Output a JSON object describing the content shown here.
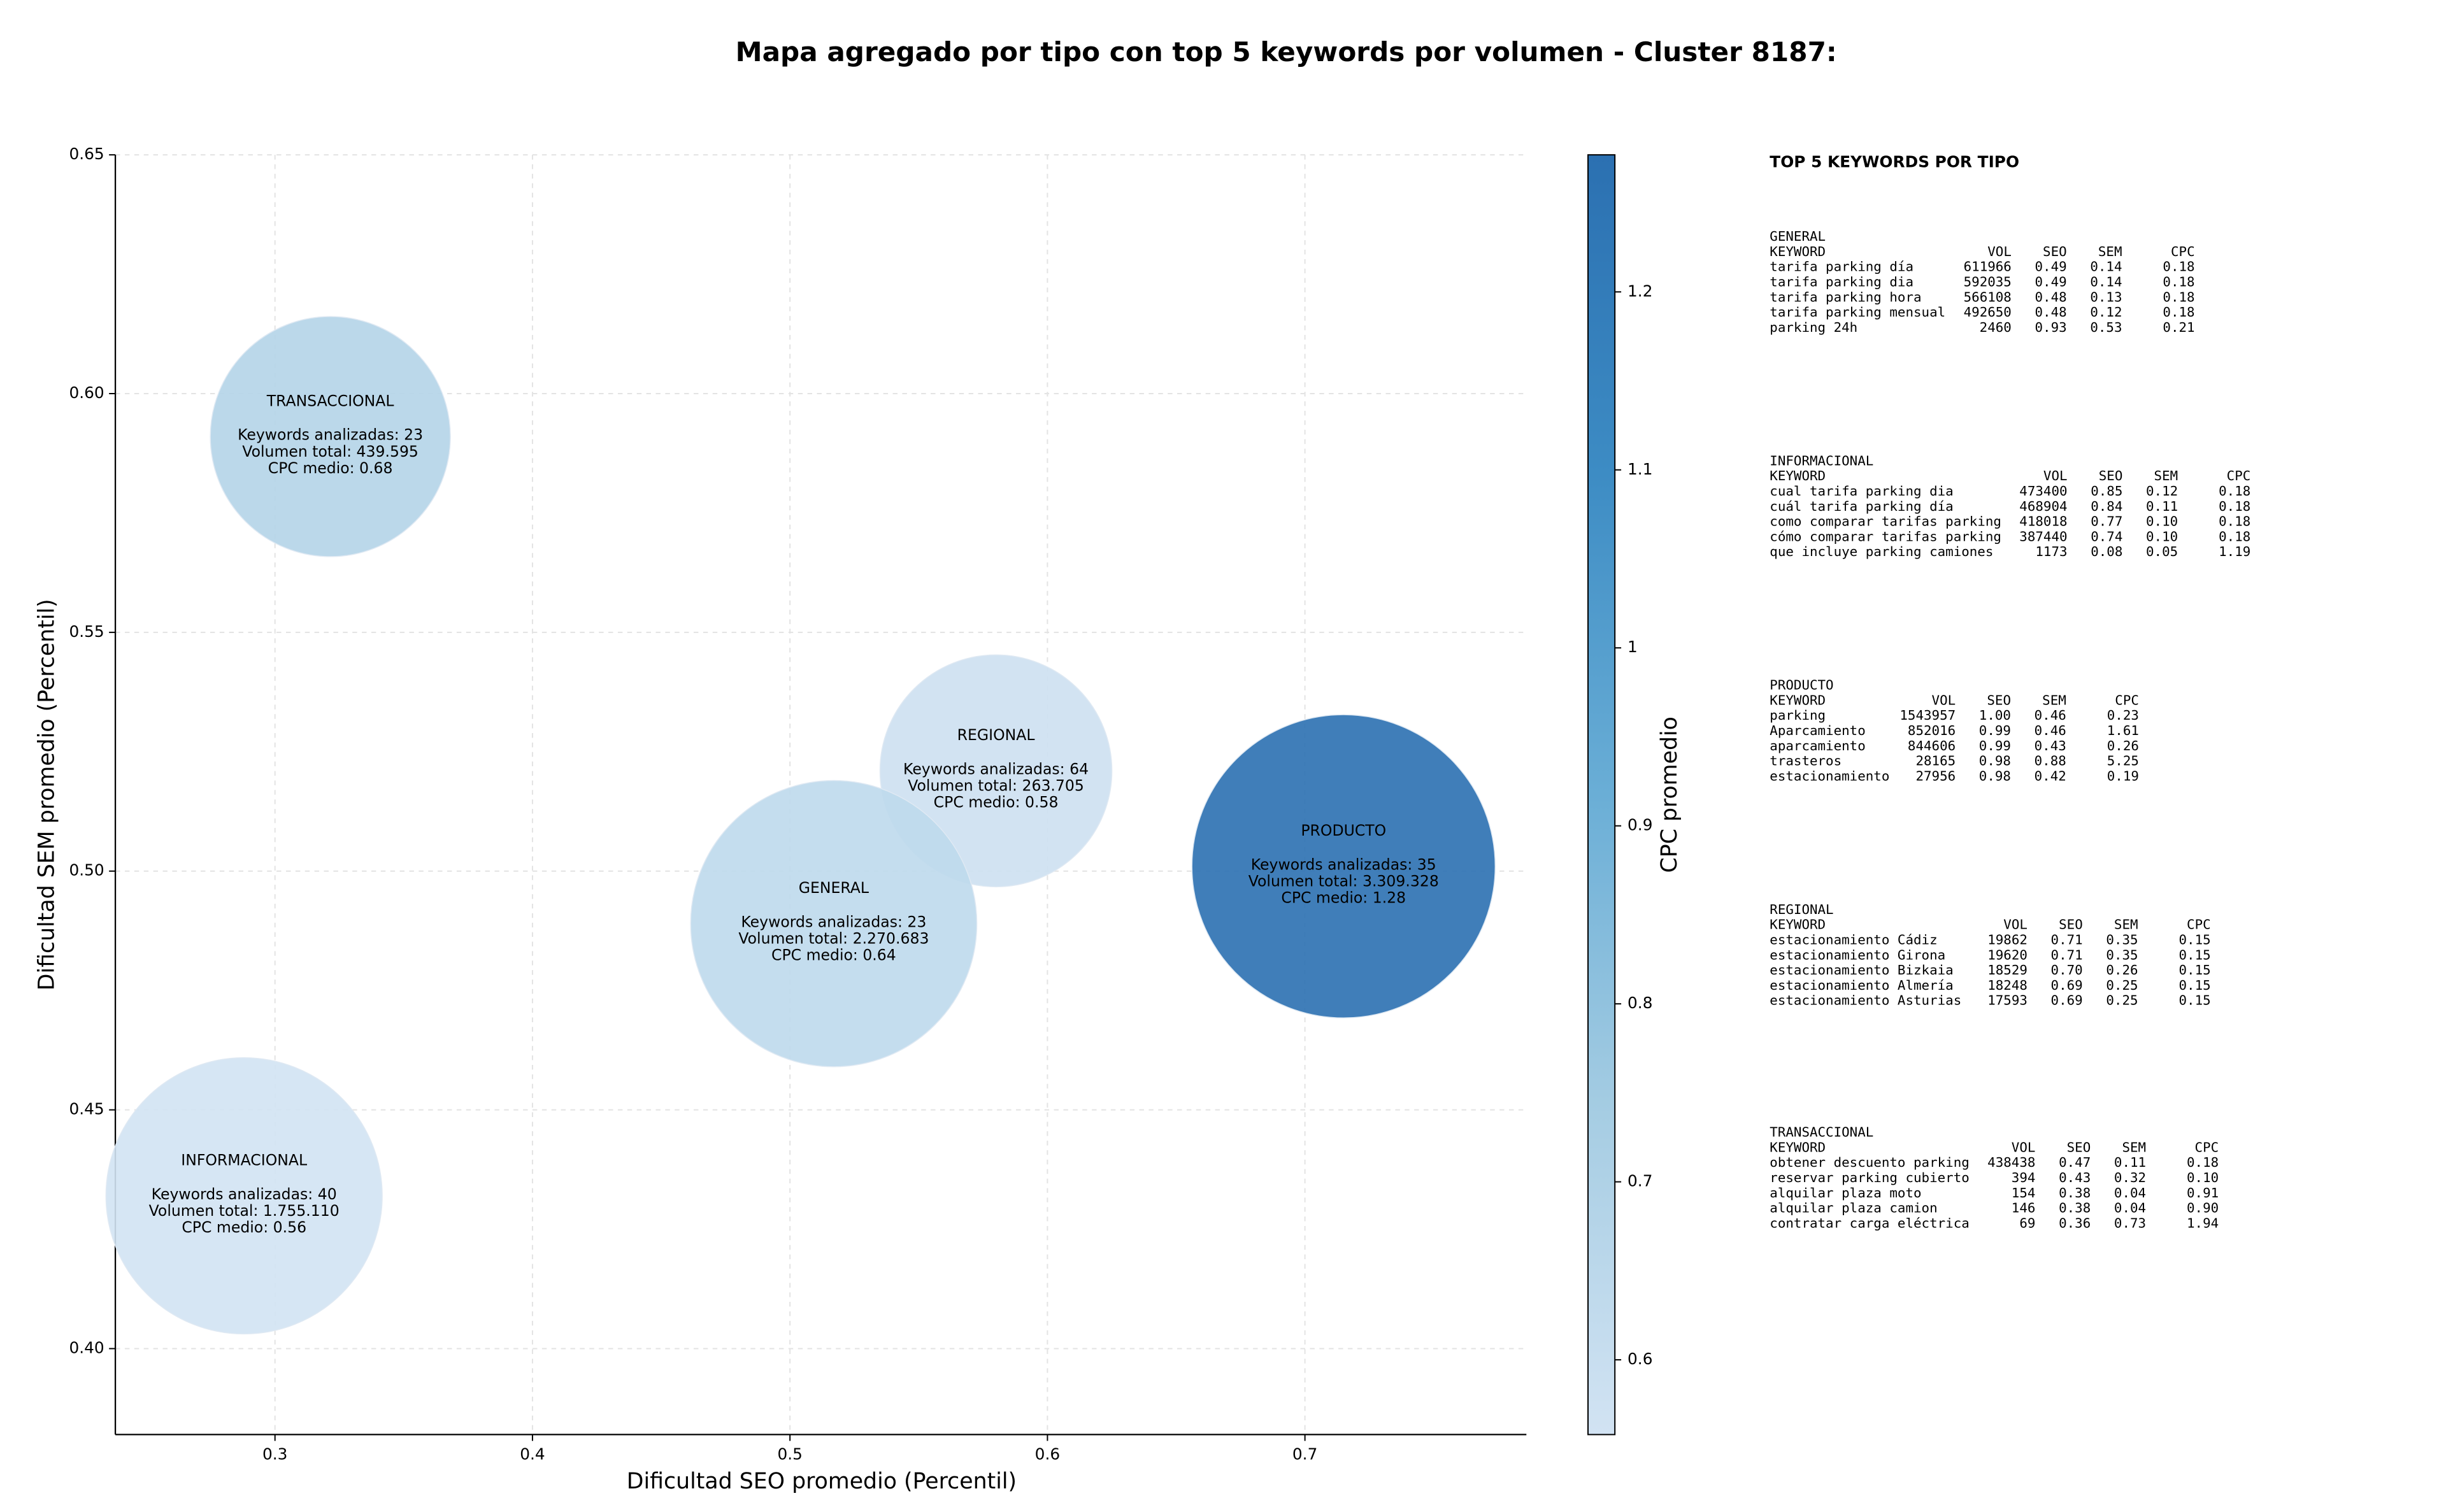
{
  "chart_data": {
    "type": "bubble",
    "title": "Mapa agregado por tipo con top 5 keywords por volumen - Cluster 8187:",
    "x_label": "Dificultad SEO promedio (Percentil)",
    "y_label": "Dificultad SEM promedio (Percentil)",
    "colorbar_label": "CPC promedio",
    "xlim": [
      0.238,
      0.786
    ],
    "xticks": [
      {
        "value": 0.3,
        "label": "0.3"
      },
      {
        "value": 0.4,
        "label": "0.4"
      },
      {
        "value": 0.5,
        "label": "0.5"
      },
      {
        "value": 0.6,
        "label": "0.6"
      },
      {
        "value": 0.7,
        "label": "0.7"
      }
    ],
    "ylim": [
      0.382,
      0.65
    ],
    "yticks": [
      {
        "value": 0.4,
        "label": "0.40"
      },
      {
        "value": 0.45,
        "label": "0.45"
      },
      {
        "value": 0.5,
        "label": "0.50"
      },
      {
        "value": 0.55,
        "label": "0.55"
      },
      {
        "value": 0.6,
        "label": "0.60"
      },
      {
        "value": 0.65,
        "label": "0.65"
      }
    ],
    "clim": [
      0.558,
      1.277
    ],
    "cticks": [
      0.6,
      0.7,
      0.8,
      0.9,
      1.0,
      1.1,
      1.2
    ],
    "cmap": [
      "#d2e3f3",
      "#a6cde3",
      "#6aaed6",
      "#3d8cc4",
      "#2b70b1"
    ],
    "grid": true,
    "points": [
      {
        "label": "TRANSACCIONAL",
        "x": 0.3215,
        "y": 0.591,
        "volume": 439595,
        "cpc": 0.68,
        "lines": [
          "Keywords analizadas: 23",
          "Volumen total: 439.595",
          "CPC medio: 0.68"
        ]
      },
      {
        "label": "REGIONAL",
        "x": 0.58,
        "y": 0.521,
        "volume": 263705,
        "cpc": 0.58,
        "lines": [
          "Keywords analizadas: 64",
          "Volumen total: 263.705",
          "CPC medio: 0.58"
        ]
      },
      {
        "label": "GENERAL",
        "x": 0.517,
        "y": 0.489,
        "volume": 2270683,
        "cpc": 0.64,
        "lines": [
          "Keywords analizadas: 23",
          "Volumen total: 2.270.683",
          "CPC medio: 0.64"
        ]
      },
      {
        "label": "PRODUCTO",
        "x": 0.715,
        "y": 0.501,
        "volume": 3309328,
        "cpc": 1.28,
        "lines": [
          "Keywords analizadas: 35",
          "Volumen total: 3.309.328",
          "CPC medio: 1.28"
        ]
      },
      {
        "label": "INFORMACIONAL",
        "x": 0.288,
        "y": 0.432,
        "volume": 1755110,
        "cpc": 0.56,
        "lines": [
          "Keywords analizadas: 40",
          "Volumen total: 1.755.110",
          "CPC medio: 0.56"
        ]
      }
    ]
  },
  "side_table": {
    "title": "TOP 5 KEYWORDS POR TIPO",
    "sections": [
      {
        "name": "GENERAL",
        "header": [
          "KEYWORD",
          "VOL",
          "SEO",
          "SEM",
          "CPC"
        ],
        "rows": [
          [
            "tarifa parking día",
            "611966",
            "0.49",
            "0.14",
            "0.18"
          ],
          [
            "tarifa parking dia",
            "592035",
            "0.49",
            "0.14",
            "0.18"
          ],
          [
            "tarifa parking hora",
            "566108",
            "0.48",
            "0.13",
            "0.18"
          ],
          [
            "tarifa parking mensual",
            "492650",
            "0.48",
            "0.12",
            "0.18"
          ],
          [
            "parking 24h",
            "2460",
            "0.93",
            "0.53",
            "0.21"
          ]
        ]
      },
      {
        "name": "INFORMACIONAL",
        "header": [
          "KEYWORD",
          "VOL",
          "SEO",
          "SEM",
          "CPC"
        ],
        "rows": [
          [
            "cual tarifa parking dia",
            "473400",
            "0.85",
            "0.12",
            "0.18"
          ],
          [
            "cuál tarifa parking día",
            "468904",
            "0.84",
            "0.11",
            "0.18"
          ],
          [
            "como comparar tarifas parking",
            "418018",
            "0.77",
            "0.10",
            "0.18"
          ],
          [
            "cómo comparar tarifas parking",
            "387440",
            "0.74",
            "0.10",
            "0.18"
          ],
          [
            "que incluye parking camiones",
            "1173",
            "0.08",
            "0.05",
            "1.19"
          ]
        ]
      },
      {
        "name": "PRODUCTO",
        "header": [
          "KEYWORD",
          "VOL",
          "SEO",
          "SEM",
          "CPC"
        ],
        "rows": [
          [
            "parking",
            "1543957",
            "1.00",
            "0.46",
            "0.23"
          ],
          [
            "Aparcamiento",
            "852016",
            "0.99",
            "0.46",
            "1.61"
          ],
          [
            "aparcamiento",
            "844606",
            "0.99",
            "0.43",
            "0.26"
          ],
          [
            "trasteros",
            "28165",
            "0.98",
            "0.88",
            "5.25"
          ],
          [
            "estacionamiento",
            "27956",
            "0.98",
            "0.42",
            "0.19"
          ]
        ]
      },
      {
        "name": "REGIONAL",
        "header": [
          "KEYWORD",
          "VOL",
          "SEO",
          "SEM",
          "CPC"
        ],
        "rows": [
          [
            "estacionamiento Cádiz",
            "19862",
            "0.71",
            "0.35",
            "0.15"
          ],
          [
            "estacionamiento Girona",
            "19620",
            "0.71",
            "0.35",
            "0.15"
          ],
          [
            "estacionamiento Bizkaia",
            "18529",
            "0.70",
            "0.26",
            "0.15"
          ],
          [
            "estacionamiento Almería",
            "18248",
            "0.69",
            "0.25",
            "0.15"
          ],
          [
            "estacionamiento Asturias",
            "17593",
            "0.69",
            "0.25",
            "0.15"
          ]
        ]
      },
      {
        "name": "TRANSACCIONAL",
        "header": [
          "KEYWORD",
          "VOL",
          "SEO",
          "SEM",
          "CPC"
        ],
        "rows": [
          [
            "obtener descuento parking",
            "438438",
            "0.47",
            "0.11",
            "0.18"
          ],
          [
            "reservar parking cubierto",
            "394",
            "0.43",
            "0.32",
            "0.10"
          ],
          [
            "alquilar plaza moto",
            "154",
            "0.38",
            "0.04",
            "0.91"
          ],
          [
            "alquilar plaza camion",
            "146",
            "0.38",
            "0.04",
            "0.90"
          ],
          [
            "contratar carga eléctrica",
            "69",
            "0.36",
            "0.73",
            "1.94"
          ]
        ]
      }
    ]
  }
}
